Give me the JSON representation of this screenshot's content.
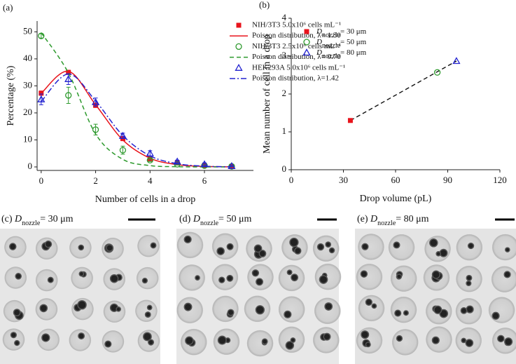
{
  "chart_data": [
    {
      "type": "line",
      "panel_label": "(a)",
      "x_label": "Number of cells in a drop",
      "y_label": "Percentage (%)",
      "xlim": [
        -0.15,
        7.8
      ],
      "ylim": [
        -1.3,
        54
      ],
      "xticks": [
        0,
        2,
        4,
        6
      ],
      "yticks": [
        0,
        10,
        20,
        30,
        40,
        50
      ],
      "x": [
        0,
        1,
        2,
        3,
        4,
        5,
        6,
        7
      ],
      "series": [
        {
          "name": "NIH/3T3 5.0x10⁶ cells mL⁻¹",
          "color": "#e8141c",
          "marker": "square",
          "values": [
            27.3,
            35,
            22.8,
            10.5,
            3,
            1.5,
            0.5,
            0.1
          ],
          "errors": [
            0.8,
            0.8,
            0.8,
            0.8,
            0.5,
            0.3,
            0.2,
            0.1
          ]
        },
        {
          "name": "Poisson distribution, λ= 1.30",
          "color": "#e8141c",
          "line_style": "solid",
          "values": [
            27.25,
            35.4,
            23.0,
            9.98,
            3.24,
            0.84,
            0.18,
            0.03
          ]
        },
        {
          "name": "NIH/3T3 2.5x10⁶ cells mL⁻¹",
          "color": "#2e9a2e",
          "marker": "circle",
          "values": [
            48.5,
            26.5,
            13.8,
            6.2,
            2.5,
            1,
            0.5,
            0.2
          ],
          "errors": [
            0.8,
            3,
            2,
            1.5,
            0.5,
            0.3,
            0.3,
            0.1
          ]
        },
        {
          "name": "Poisson distribution, λ= 0.70",
          "color": "#2e9a2e",
          "line_style": "dash",
          "values": [
            49.7,
            34.8,
            12.2,
            2.8,
            0.5,
            0.07,
            0.008,
            0
          ]
        },
        {
          "name": "HEK293A 5.0x10⁶ cells mL⁻¹",
          "color": "#2323d0",
          "marker": "triangle",
          "values": [
            25,
            32.5,
            24,
            11.5,
            5,
            2,
            1,
            0.3
          ],
          "errors": [
            2,
            2,
            1.5,
            1,
            1,
            0.5,
            0.5,
            0.2
          ]
        },
        {
          "name": "Poisson distribution, λ=1.42",
          "color": "#2323d0",
          "line_style": "dashdot",
          "values": [
            24.2,
            34.4,
            24.4,
            11.6,
            4.1,
            1.2,
            0.27,
            0.05
          ]
        }
      ]
    },
    {
      "type": "scatter",
      "panel_label": "(b)",
      "x_label": "Drop volume (pL)",
      "y_label": "Mean number of cell in a drop",
      "xlim": [
        0,
        120
      ],
      "ylim": [
        0,
        4
      ],
      "xticks": [
        0,
        30,
        60,
        90,
        120
      ],
      "yticks": [
        0,
        1,
        2,
        3,
        4
      ],
      "series": [
        {
          "name": "Dnozzle= 30 μm",
          "color": "#e8141c",
          "marker": "square",
          "x": [
            34
          ],
          "values": [
            1.3
          ]
        },
        {
          "name": "Dnozzle= 50 μm",
          "color": "#2e9a2e",
          "marker": "circle",
          "x": [
            84
          ],
          "values": [
            2.57
          ]
        },
        {
          "name": "Dnozzle= 80 μm",
          "color": "#2323d0",
          "marker": "triangle",
          "x": [
            95
          ],
          "values": [
            2.87
          ]
        }
      ],
      "fit_line": {
        "x": [
          34,
          95
        ],
        "values": [
          1.3,
          2.87
        ]
      }
    }
  ],
  "images": [
    {
      "caption": "(c) Dnozzle= 30 μm"
    },
    {
      "caption": "(d) Dnozzle= 50 μm"
    },
    {
      "caption": "(e) Dnozzle= 80 μm"
    }
  ]
}
